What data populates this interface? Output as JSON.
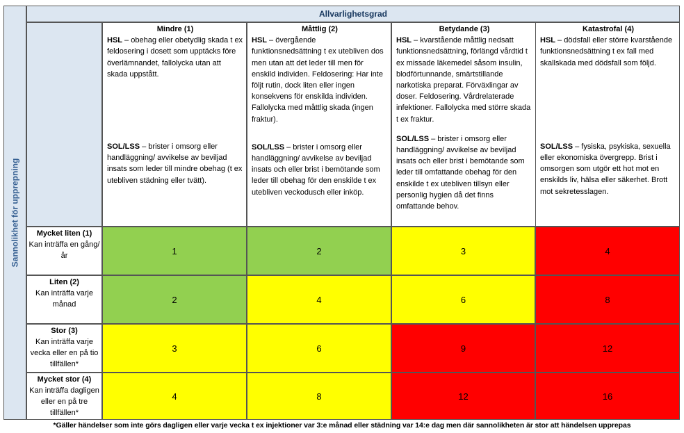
{
  "header": {
    "severity_title": "Allvarlighetsgrad"
  },
  "side_label": "Sannolikhet för upprepning",
  "severity": [
    {
      "title": "Mindre (1)",
      "hsl_label": "HSL",
      "hsl_text": " – obehag eller obetydlig skada t ex feldosering i dosett som upptäcks före överlämnandet, fallolycka utan att skada uppstått.",
      "sol_label": "SOL/LSS",
      "sol_text": " – brister i omsorg eller handläggning/ avvikelse av beviljad insats som leder till mindre obehag (t ex utebliven städning eller tvätt)."
    },
    {
      "title": "Måttlig (2)",
      "hsl_label": "HSL",
      "hsl_text": " – övergående funktionsnedsättning t ex utebliven dos men utan att det leder till men för enskild individen. Feldosering: Har inte följt rutin, dock liten eller ingen konsekvens för enskilda individen. Fallolycka med måttlig skada (ingen fraktur).",
      "sol_label": "SOL/LSS",
      "sol_text": " – brister i omsorg eller handläggning/ avvikelse av beviljad insats och eller brist i bemötande som leder till obehag för den enskilde t ex utebliven veckodusch eller inköp."
    },
    {
      "title": "Betydande (3)",
      "hsl_label": "HSL",
      "hsl_text": " – kvarstående måttlig nedsatt funktionsnedsättning, förlängd vårdtid t ex missade läkemedel såsom insulin, blodförtunnande, smärtstillande narkotiska preparat. Förväxlingar av doser. Feldosering. Vårdrelaterade infektioner. Fallolycka med större skada t ex fraktur.",
      "sol_label": "SOL/LSS",
      "sol_text": " – brister i omsorg eller handläggning/ avvikelse av beviljad insats och eller brist i bemötande som leder till omfattande obehag för den enskilde t ex utebliven tillsyn eller personlig hygien då det finns omfattande behov."
    },
    {
      "title": "Katastrofal (4)",
      "hsl_label": "HSL",
      "hsl_text": " – dödsfall eller större kvarstående funktionsnedsättning  t ex fall med skallskada med dödsfall som följd.",
      "sol_label": "SOL/LSS",
      "sol_text": " – fysiska, psykiska, sexuella eller ekonomiska övergrepp. Brist i omsorgen som utgör ett hot mot en enskilds liv, hälsa eller säkerhet. Brott mot sekretesslagen."
    }
  ],
  "likelihood": [
    {
      "title": "Mycket liten (1)",
      "desc": "Kan inträffa en gång/år"
    },
    {
      "title": "Liten (2)",
      "desc": "Kan inträffa varje månad"
    },
    {
      "title": "Stor (3)",
      "desc": "Kan inträffa varje vecka eller en på tio tillfällen*"
    },
    {
      "title": "Mycket stor (4)",
      "desc": "Kan inträffa dagligen eller en på tre tillfällen*"
    }
  ],
  "matrix": [
    [
      "1",
      "2",
      "3",
      "4"
    ],
    [
      "2",
      "4",
      "6",
      "8"
    ],
    [
      "3",
      "6",
      "9",
      "12"
    ],
    [
      "4",
      "8",
      "12",
      "16"
    ]
  ],
  "colors": {
    "green": "#92d050",
    "yellow": "#ffff00",
    "red": "#ff0000",
    "header_bg": "#dce6f1",
    "header_text": "#17375e"
  },
  "footnote": "*Gäller händelser som inte görs dagligen eller varje vecka t ex injektioner var 3:e månad eller städning var 14:e dag men där sannolikheten är stor att händelsen upprepas"
}
